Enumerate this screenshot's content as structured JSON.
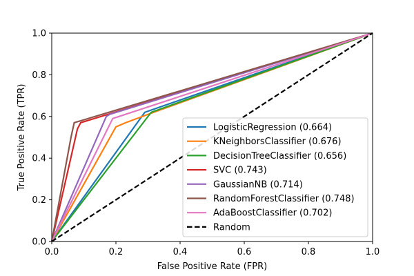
{
  "chart_data": {
    "type": "line",
    "title": "",
    "xlabel": "False Positive Rate (FPR)",
    "ylabel": "True Positive Rate (TPR)",
    "xlim": [
      0.0,
      1.0
    ],
    "ylim": [
      0.0,
      1.0
    ],
    "xticks": [
      "0.0",
      "0.2",
      "0.4",
      "0.6",
      "0.8",
      "1.0"
    ],
    "yticks": [
      "0.0",
      "0.2",
      "0.4",
      "0.6",
      "0.8",
      "1.0"
    ],
    "grid": false,
    "legend_position": "lower-right",
    "series": [
      {
        "name": "LogisticRegression (0.664)",
        "color": "#1f77b4",
        "style": "solid",
        "x": [
          0.0,
          0.29,
          1.0
        ],
        "y": [
          0.0,
          0.62,
          1.0
        ]
      },
      {
        "name": "KNeighborsClassifier (0.676)",
        "color": "#ff7f0e",
        "style": "solid",
        "x": [
          0.0,
          0.2,
          0.23,
          0.3,
          1.0
        ],
        "y": [
          0.0,
          0.55,
          0.57,
          0.61,
          1.0
        ]
      },
      {
        "name": "DecisionTreeClassifier (0.656)",
        "color": "#2ca02c",
        "style": "solid",
        "x": [
          0.0,
          0.31,
          1.0
        ],
        "y": [
          0.0,
          0.62,
          1.0
        ]
      },
      {
        "name": "SVC (0.743)",
        "color": "#d62728",
        "style": "solid",
        "x": [
          0.0,
          0.08,
          0.09,
          1.0
        ],
        "y": [
          0.0,
          0.54,
          0.57,
          1.0
        ]
      },
      {
        "name": "GaussianNB (0.714)",
        "color": "#9467bd",
        "style": "solid",
        "x": [
          0.0,
          0.17,
          0.18,
          1.0
        ],
        "y": [
          0.0,
          0.6,
          0.61,
          1.0
        ]
      },
      {
        "name": "RandomForestClassifier (0.748)",
        "color": "#8c564b",
        "style": "solid",
        "x": [
          0.0,
          0.06,
          0.07,
          1.0
        ],
        "y": [
          0.0,
          0.5,
          0.57,
          1.0
        ]
      },
      {
        "name": "AdaBoostClassifier (0.702)",
        "color": "#e377c2",
        "style": "solid",
        "x": [
          0.0,
          0.19,
          1.0
        ],
        "y": [
          0.0,
          0.59,
          1.0
        ]
      },
      {
        "name": "Random",
        "color": "#000000",
        "style": "dashed",
        "x": [
          0.0,
          1.0
        ],
        "y": [
          0.0,
          1.0
        ]
      }
    ]
  }
}
